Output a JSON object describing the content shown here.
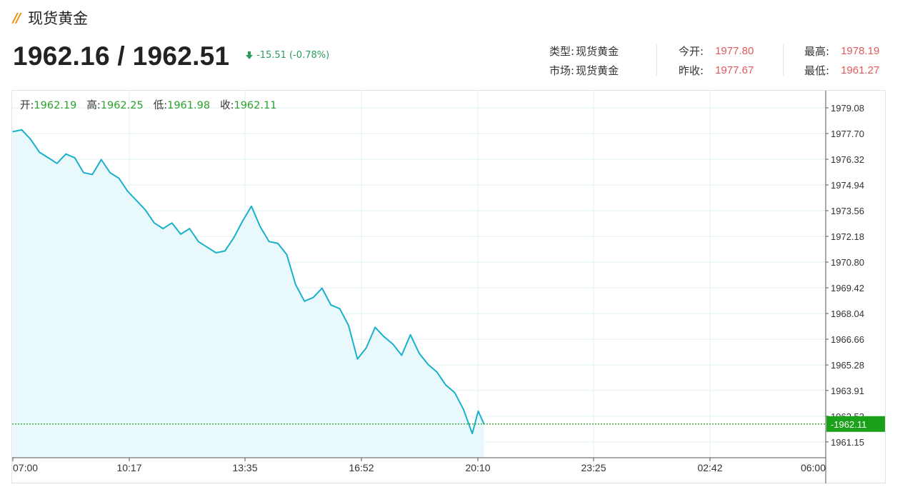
{
  "header": {
    "title": "现货黄金",
    "price": "1962.16 / 1962.51",
    "change": "-15.51 (-0.78%)"
  },
  "stats": {
    "type_label": "类型:",
    "type_value": "现货黄金",
    "market_label": "市场:",
    "market_value": "现货黄金",
    "open_label": "今开:",
    "open_value": "1977.80",
    "prev_close_label": "昨收:",
    "prev_close_value": "1977.67",
    "high_label": "最高:",
    "high_value": "1978.19",
    "low_label": "最低:",
    "low_value": "1961.27"
  },
  "ohlc": {
    "open_label": "开:",
    "open_value": "1962.19",
    "high_label": "高:",
    "high_value": "1962.25",
    "low_label": "低:",
    "low_value": "1961.98",
    "close_label": "收:",
    "close_value": "1962.11"
  },
  "colors": {
    "line": "#1ab0cc",
    "area": "#e8f8fb",
    "last_price": "#1aa11a",
    "down": "#2a9d5c",
    "stat_value": "#e05a5a",
    "ohlc_value": "#2ca02c"
  },
  "chart_data": {
    "type": "area",
    "x_ticks": [
      "07:00",
      "10:17",
      "13:35",
      "16:52",
      "20:10",
      "23:25",
      "02:42",
      "06:00"
    ],
    "y_ticks": [
      "1979.08",
      "1977.70",
      "1976.32",
      "1974.94",
      "1973.56",
      "1972.18",
      "1970.80",
      "1969.42",
      "1968.04",
      "1966.66",
      "1965.28",
      "1963.91",
      "1962.53",
      "1961.15"
    ],
    "ylim": [
      1960.3,
      1980.0
    ],
    "last_price": "1962.11",
    "series": [
      {
        "x": [
          "07:00",
          "07:15",
          "07:30",
          "07:45",
          "08:00",
          "08:15",
          "08:30",
          "08:45",
          "09:00",
          "09:15",
          "09:30",
          "09:45",
          "10:00",
          "10:15",
          "10:30",
          "10:45",
          "11:00",
          "11:15",
          "11:30",
          "11:45",
          "12:00",
          "12:15",
          "12:30",
          "12:45",
          "13:00",
          "13:15",
          "13:30",
          "13:45",
          "14:00",
          "14:15",
          "14:30",
          "14:45",
          "15:00",
          "15:15",
          "15:30",
          "15:45",
          "16:00",
          "16:15",
          "16:30",
          "16:45",
          "17:00",
          "17:15",
          "17:30",
          "17:45",
          "18:00",
          "18:15",
          "18:30",
          "18:45",
          "19:00",
          "19:15",
          "19:30",
          "19:45",
          "20:00",
          "20:10",
          "20:20"
        ],
        "values": [
          1977.8,
          1977.9,
          1977.4,
          1976.7,
          1976.4,
          1976.1,
          1976.6,
          1976.4,
          1975.6,
          1975.5,
          1976.3,
          1975.6,
          1975.3,
          1974.6,
          1974.1,
          1973.6,
          1972.9,
          1972.6,
          1972.9,
          1972.3,
          1972.6,
          1971.9,
          1971.6,
          1971.3,
          1971.4,
          1972.1,
          1973.0,
          1973.8,
          1972.7,
          1971.9,
          1971.8,
          1971.2,
          1969.6,
          1968.7,
          1968.9,
          1969.4,
          1968.5,
          1968.3,
          1967.4,
          1965.6,
          1966.2,
          1967.3,
          1966.8,
          1966.4,
          1965.8,
          1966.9,
          1965.9,
          1965.3,
          1964.9,
          1964.2,
          1963.8,
          1962.9,
          1961.6,
          1962.8,
          1962.1
        ]
      }
    ]
  }
}
